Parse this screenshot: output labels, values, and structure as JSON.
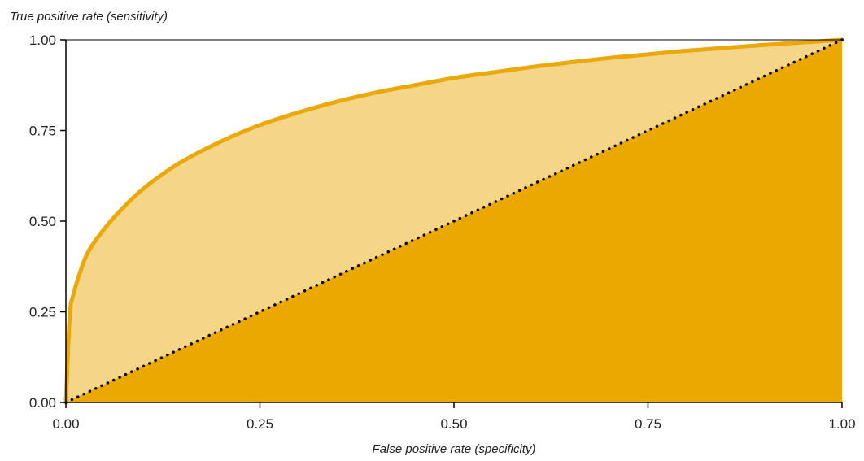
{
  "chart_data": {
    "type": "area",
    "title": "",
    "xlabel": "False positive rate (specificity)",
    "ylabel": "True positive rate (sensitivity)",
    "xlim": [
      0,
      1
    ],
    "ylim": [
      0,
      1
    ],
    "grid": false,
    "x_ticks": [
      "0.00",
      "0.25",
      "0.50",
      "0.75",
      "1.00"
    ],
    "y_ticks": [
      "0.00",
      "0.25",
      "0.50",
      "0.75",
      "1.00"
    ],
    "series": [
      {
        "type": "line",
        "x": [
          0,
          0.005,
          0.01,
          0.02,
          0.03,
          0.05,
          0.075,
          0.1,
          0.125,
          0.15,
          0.2,
          0.25,
          0.3,
          0.35,
          0.4,
          0.45,
          0.5,
          0.55,
          0.6,
          0.65,
          0.7,
          0.75,
          0.8,
          0.85,
          0.9,
          0.95,
          1.0
        ],
        "y": [
          0,
          0.24,
          0.3,
          0.37,
          0.42,
          0.48,
          0.54,
          0.59,
          0.63,
          0.665,
          0.72,
          0.765,
          0.8,
          0.83,
          0.855,
          0.875,
          0.895,
          0.91,
          0.925,
          0.938,
          0.95,
          0.96,
          0.97,
          0.978,
          0.986,
          0.993,
          1.0
        ]
      },
      {
        "type": "dotted-line",
        "x": [
          0,
          1
        ],
        "y": [
          0,
          1
        ]
      }
    ],
    "colors": {
      "curve": "#eaa80b",
      "area_above_diagonal": "#f5d689",
      "area_below_diagonal": "#eaa800",
      "diagonal": "#000000",
      "axis": "#000000"
    }
  }
}
